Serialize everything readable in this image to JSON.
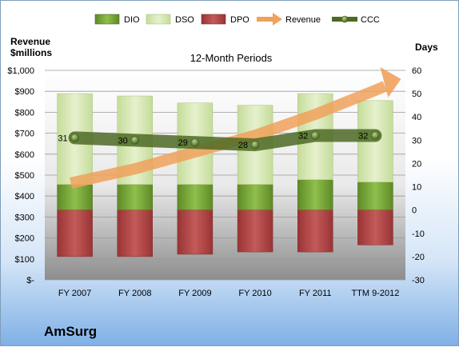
{
  "chart_data": {
    "type": "bar",
    "title": "12-Month Periods",
    "company": "AmSurg",
    "left_axis_label": [
      "Revenue",
      "$millions"
    ],
    "right_axis_label": "Days",
    "left_axis": {
      "min": 0,
      "max": 1000,
      "step": 100
    },
    "right_axis": {
      "min": -30,
      "max": 60,
      "step": 10
    },
    "left_tick_labels": [
      "$-",
      "$100",
      "$200",
      "$300",
      "$400",
      "$500",
      "$600",
      "$700",
      "$800",
      "$900",
      "$1,000"
    ],
    "right_tick_labels": [
      "-30",
      "-20",
      "-10",
      "0",
      "10",
      "20",
      "30",
      "40",
      "50",
      "60"
    ],
    "categories": [
      "FY 2007",
      "FY 2008",
      "FY 2009",
      "FY 2010",
      "FY 2011",
      "TTM 9-2012"
    ],
    "legend": [
      "DIO",
      "DSO",
      "DPO",
      "Revenue",
      "CCC"
    ],
    "legend_placement": "top",
    "grid": true,
    "series": [
      {
        "name": "DIO",
        "axis": "days",
        "values": [
          11,
          11,
          11,
          11,
          13,
          12
        ],
        "color": "#77a23a"
      },
      {
        "name": "DSO",
        "axis": "days",
        "values": [
          39,
          38,
          35,
          34,
          37,
          35
        ],
        "color": "#d7e8b4"
      },
      {
        "name": "DPO",
        "axis": "days",
        "values": [
          -20,
          -20,
          -19,
          -18,
          -18,
          -15
        ],
        "color": "#b14545"
      },
      {
        "name": "Revenue",
        "axis": "dollars",
        "values": [
          470,
          530,
          610,
          690,
          790,
          905
        ],
        "color": "#f0a15c"
      },
      {
        "name": "CCC",
        "axis": "days",
        "values": [
          31,
          30,
          29,
          28,
          32,
          32
        ],
        "color": "#4d6a25"
      }
    ]
  }
}
